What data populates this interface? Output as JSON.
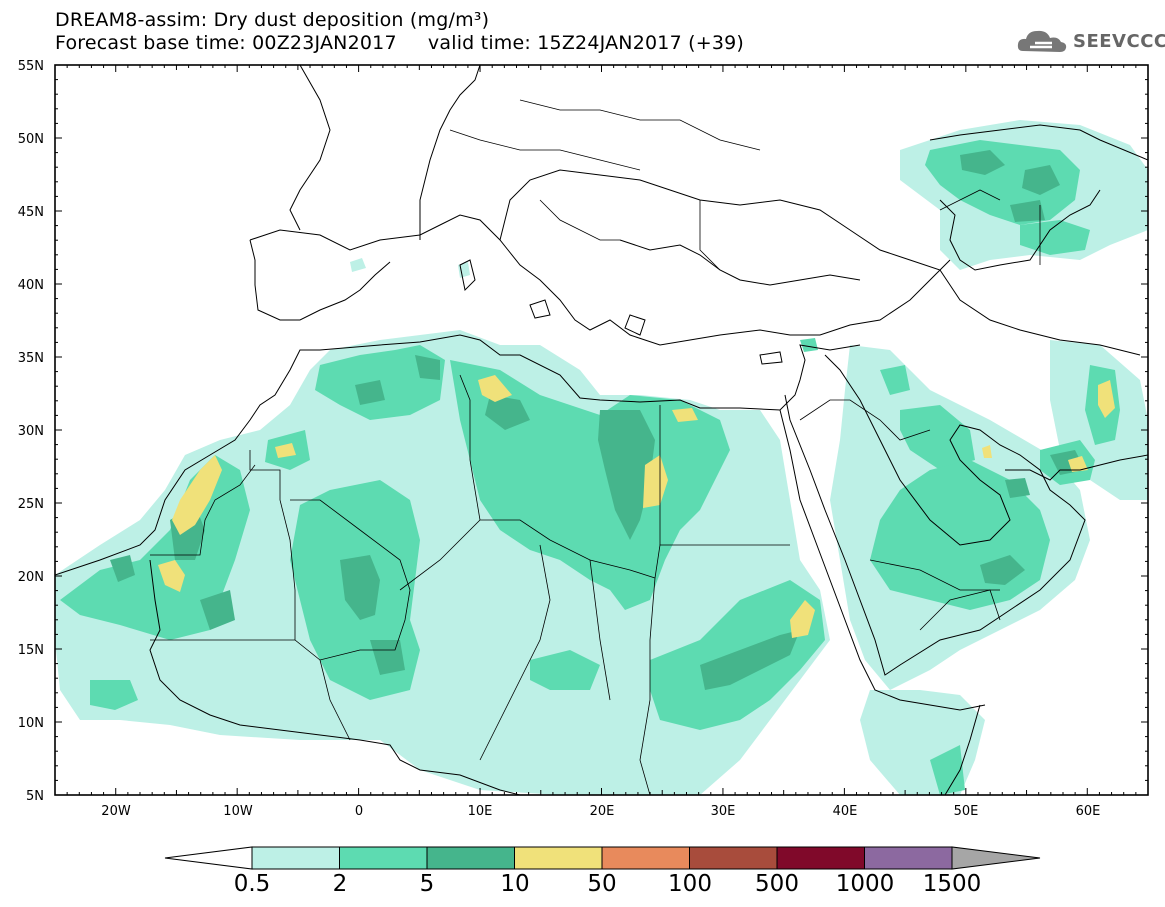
{
  "header": {
    "title_line1": "DREAM8-assim: Dry dust deposition (mg/m³)",
    "title_line2": "Forecast base time: 00Z23JAN2017     valid time: 15Z24JAN2017 (+39)"
  },
  "logo": {
    "text": "SEEVCCC",
    "icon": "cloud-icon"
  },
  "map": {
    "region": "North Africa, Europe and Middle East",
    "lon_range": [
      -25,
      65
    ],
    "lat_range": [
      5,
      55
    ],
    "lat_labels": [
      "55N",
      "50N",
      "45N",
      "40N",
      "35N",
      "30N",
      "25N",
      "20N",
      "15N",
      "10N",
      "5N"
    ],
    "lon_labels": [
      "20W",
      "10W",
      "0",
      "10E",
      "20E",
      "30E",
      "40E",
      "50E",
      "60E"
    ],
    "colors": {
      "level1": "#bdf0e6",
      "level2": "#5ddbb1",
      "level3": "#45b58c",
      "level4": "#f0e17a",
      "coast": "#000000"
    }
  },
  "colorbar": {
    "labels": [
      "0.5",
      "2",
      "5",
      "10",
      "50",
      "100",
      "500",
      "1000",
      "1500"
    ],
    "colors": [
      "#ffffff",
      "#bdf0e6",
      "#5ddbb1",
      "#45b58c",
      "#f0e17a",
      "#e88a5c",
      "#a84c3c",
      "#80092a",
      "#8c69a0",
      "#a6a6a6"
    ]
  }
}
